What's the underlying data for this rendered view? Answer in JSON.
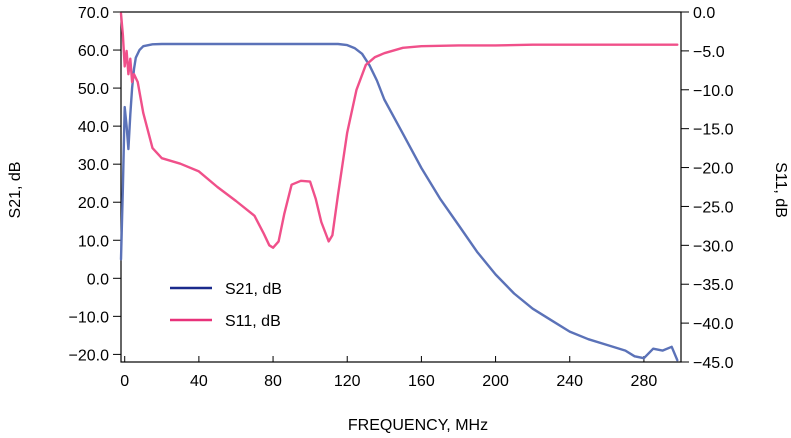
{
  "chart_data": {
    "type": "line",
    "xlabel": "FREQUENCY, MHz",
    "ylabel_left": "S21, dB",
    "ylabel_right": "S11, dB",
    "xlim": [
      -2,
      300
    ],
    "ylim_left": [
      -22,
      70
    ],
    "ylim_right": [
      -45,
      0
    ],
    "x_ticks": [
      0,
      40,
      80,
      120,
      160,
      200,
      240,
      280
    ],
    "x_tick_labels": [
      "0",
      "40",
      "80",
      "120",
      "160",
      "200",
      "240",
      "280"
    ],
    "y_left_ticks": [
      70,
      60,
      50,
      40,
      30,
      20,
      10,
      0,
      -10,
      -20
    ],
    "y_left_tick_labels": [
      "70.0",
      "60.0",
      "50.0",
      "40.0",
      "30.0",
      "20.0",
      "10.0",
      "0.0",
      "−10.0",
      "−20.0"
    ],
    "y_right_ticks": [
      0,
      -5,
      -10,
      -15,
      -20,
      -25,
      -30,
      -35,
      -40,
      -45
    ],
    "y_right_tick_labels": [
      "0.0",
      "−5.0",
      "−10.0",
      "−15.0",
      "−20.0",
      "−25.0",
      "−30.0",
      "−35.0",
      "−40.0",
      "−45.0"
    ],
    "grid": false,
    "legend_position": "lower-left",
    "series": [
      {
        "name": "S21, dB",
        "axis": "left",
        "color": "#5b72b8",
        "legend_color": "#1a2a8c",
        "x": [
          -2,
          -1,
          0,
          1,
          2,
          3,
          4,
          5,
          6,
          8,
          10,
          15,
          20,
          30,
          40,
          60,
          80,
          100,
          110,
          115,
          120,
          124,
          128,
          132,
          136,
          140,
          150,
          160,
          170,
          180,
          190,
          200,
          210,
          220,
          230,
          240,
          250,
          260,
          270,
          275,
          280,
          285,
          290,
          295,
          298
        ],
        "y": [
          5,
          24,
          45,
          40,
          34,
          43,
          50,
          55,
          58,
          60,
          61,
          61.5,
          61.6,
          61.6,
          61.6,
          61.6,
          61.6,
          61.6,
          61.6,
          61.6,
          61.3,
          60.5,
          59,
          56,
          52,
          47,
          38,
          29,
          21,
          14,
          7,
          1,
          -4,
          -8,
          -11,
          -14,
          -16,
          -17.5,
          -19,
          -20.5,
          -21,
          -18.5,
          -19,
          -18,
          -21.5
        ]
      },
      {
        "name": "S11, dB",
        "axis": "right",
        "color": "#f0508a",
        "legend_color": "#e8327a",
        "x": [
          -2,
          -1,
          0,
          1,
          2,
          3,
          4,
          5,
          7,
          10,
          15,
          20,
          30,
          40,
          50,
          60,
          70,
          75,
          78,
          80,
          83,
          86,
          90,
          95,
          100,
          103,
          106,
          110,
          112,
          115,
          120,
          125,
          130,
          135,
          140,
          150,
          160,
          180,
          200,
          220,
          240,
          260,
          280,
          298
        ],
        "y": [
          -0.2,
          -3,
          -7,
          -5,
          -8,
          -6,
          -9,
          -8,
          -9,
          -13,
          -17.5,
          -18.8,
          -19.5,
          -20.5,
          -22.5,
          -24.3,
          -26.2,
          -28.5,
          -30,
          -30.3,
          -29.5,
          -26,
          -22.2,
          -21.7,
          -21.8,
          -24,
          -27,
          -29.5,
          -28.7,
          -23.5,
          -15.5,
          -10,
          -6.8,
          -5.8,
          -5.3,
          -4.6,
          -4.4,
          -4.3,
          -4.3,
          -4.2,
          -4.2,
          -4.2,
          -4.2,
          -4.2
        ]
      }
    ]
  }
}
